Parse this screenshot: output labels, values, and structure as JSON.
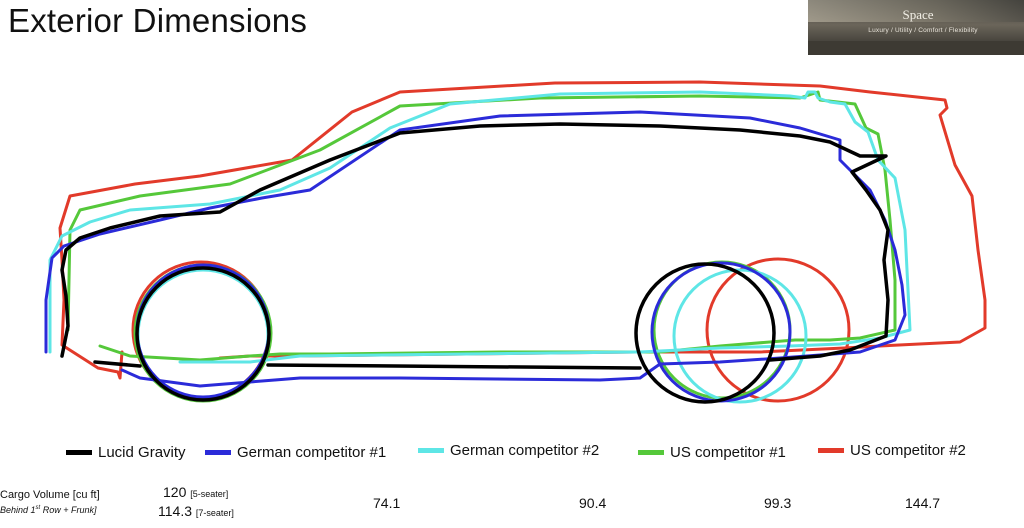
{
  "title": "Exterior Dimensions",
  "thumbnail": {
    "heading": "Space",
    "subtitle": "Luxury / Utility / Comfort / Flexibility"
  },
  "vehicles": [
    {
      "name": "Lucid Gravity",
      "color": "#000000"
    },
    {
      "name": "German competitor #1",
      "color": "#2b2bd9"
    },
    {
      "name": "German competitor #2",
      "color": "#5ee6e6"
    },
    {
      "name": "US competitor #1",
      "color": "#55c83a"
    },
    {
      "name": "US competitor #2",
      "color": "#e23a2a"
    }
  ],
  "cargo": {
    "label_line1": "Cargo Volume [cu ft]",
    "label_line2_pre": "Behind 1",
    "label_line2_sup": "st",
    "label_line2_post": " Row + Frunk]",
    "lucid_5": "120",
    "lucid_5_note": "[5-seater]",
    "lucid_7": "114.3",
    "lucid_7_note": "[7-seater]",
    "values": [
      "74.1",
      "90.4",
      "99.3",
      "144.7"
    ]
  }
}
